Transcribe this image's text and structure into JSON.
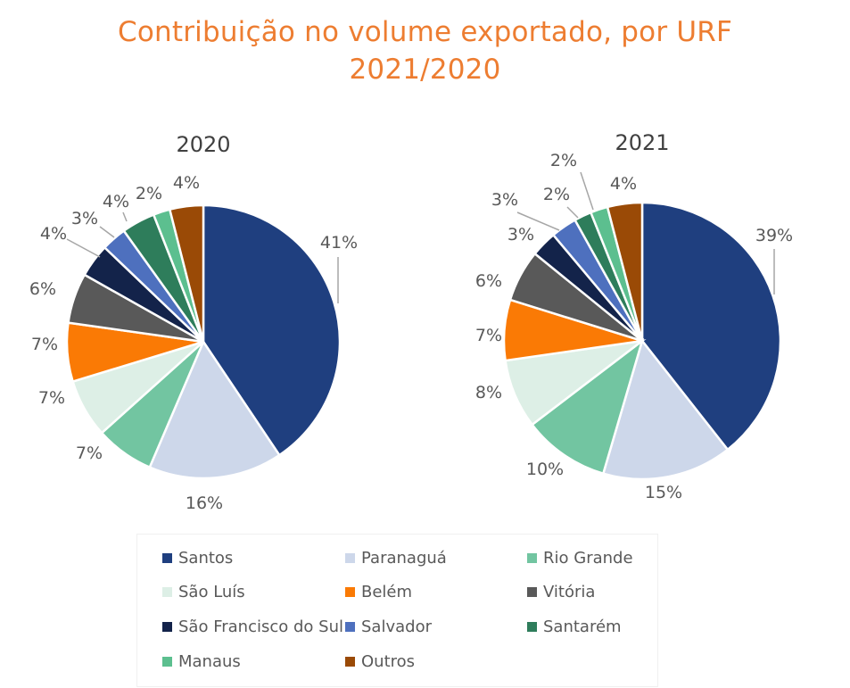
{
  "title_line1": "Contribuição no volume exportado, por URF",
  "title_line2": "2021/2020",
  "colors": {
    "title": "#ED7D31",
    "series": [
      "#1F3F7F",
      "#CDD7EA",
      "#72C5A1",
      "#DDEFE6",
      "#FA7A05",
      "#595959",
      "#13234A",
      "#4E70BE",
      "#2E7D5B",
      "#5CBF8F",
      "#9A4A06"
    ]
  },
  "chart_data": [
    {
      "type": "pie",
      "title": "2020",
      "categories": [
        "Santos",
        "Paranaguá",
        "Rio Grande",
        "São Luís",
        "Belém",
        "Vitória",
        "São Francisco do Sul",
        "Salvador",
        "Santarém",
        "Manaus",
        "Outros"
      ],
      "values": [
        41,
        16,
        7,
        7,
        7,
        6,
        4,
        3,
        4,
        2,
        4
      ],
      "labels": [
        "41%",
        "16%",
        "7%",
        "7%",
        "7%",
        "6%",
        "4%",
        "3%",
        "4%",
        "2%",
        "4%"
      ]
    },
    {
      "type": "pie",
      "title": "2021",
      "categories": [
        "Santos",
        "Paranaguá",
        "Rio Grande",
        "São Luís",
        "Belém",
        "Vitória",
        "São Francisco do Sul",
        "Salvador",
        "Santarém",
        "Manaus",
        "Outros"
      ],
      "values": [
        39,
        15,
        10,
        8,
        7,
        6,
        3,
        3,
        2,
        2,
        4
      ],
      "labels": [
        "39%",
        "15%",
        "10%",
        "8%",
        "7%",
        "6%",
        "3%",
        "3%",
        "2%",
        "2%",
        "4%"
      ]
    }
  ],
  "legend": [
    {
      "label": "Santos",
      "color": "#1F3F7F"
    },
    {
      "label": "Paranaguá",
      "color": "#CDD7EA"
    },
    {
      "label": "Rio Grande",
      "color": "#72C5A1"
    },
    {
      "label": "São Luís",
      "color": "#DDEFE6"
    },
    {
      "label": "Belém",
      "color": "#FA7A05"
    },
    {
      "label": "Vitória",
      "color": "#595959"
    },
    {
      "label": "São Francisco do Sul",
      "color": "#13234A"
    },
    {
      "label": "Salvador",
      "color": "#4E70BE"
    },
    {
      "label": "Santarém",
      "color": "#2E7D5B"
    },
    {
      "label": "Manaus",
      "color": "#5CBF8F"
    },
    {
      "label": "Outros",
      "color": "#9A4A06"
    }
  ]
}
